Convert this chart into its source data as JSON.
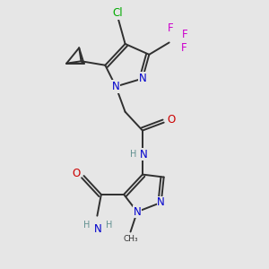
{
  "background_color": "#e6e6e6",
  "colors": {
    "C": "#303030",
    "N": "#0000cc",
    "O": "#cc0000",
    "F": "#cc00cc",
    "Cl": "#00aa00",
    "H": "#609090",
    "bond": "#303030"
  }
}
